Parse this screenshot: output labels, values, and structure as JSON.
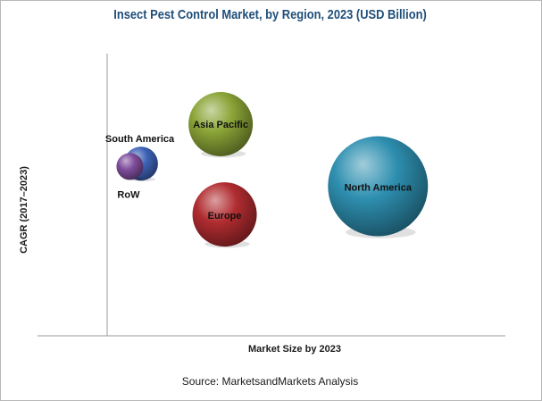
{
  "chart_data": {
    "type": "bubble",
    "title": "Insect Pest Control Market, by Region, 2023 (USD Billion)",
    "xlabel": "Market Size by 2023",
    "ylabel": "CAGR (2017–2023)",
    "xlim": [
      0,
      100
    ],
    "ylim": [
      0,
      100
    ],
    "grid": false,
    "legend": "none",
    "series": [
      {
        "name": "North America",
        "x": 68,
        "y": 53,
        "size": 56,
        "color": "#2e8fb0"
      },
      {
        "name": "Asia Pacific",
        "x": 28.5,
        "y": 75,
        "size": 36,
        "color": "#8aa437"
      },
      {
        "name": "Europe",
        "x": 29.5,
        "y": 43,
        "size": 36,
        "color": "#b02c30"
      },
      {
        "name": "South America",
        "x": 8.5,
        "y": 61,
        "size": 19,
        "color": "#3d62b5"
      },
      {
        "name": "RoW",
        "x": 5.7,
        "y": 60,
        "size": 15,
        "color": "#7e4d9c"
      }
    ]
  },
  "source": "Source: MarketsandMarkets Analysis"
}
